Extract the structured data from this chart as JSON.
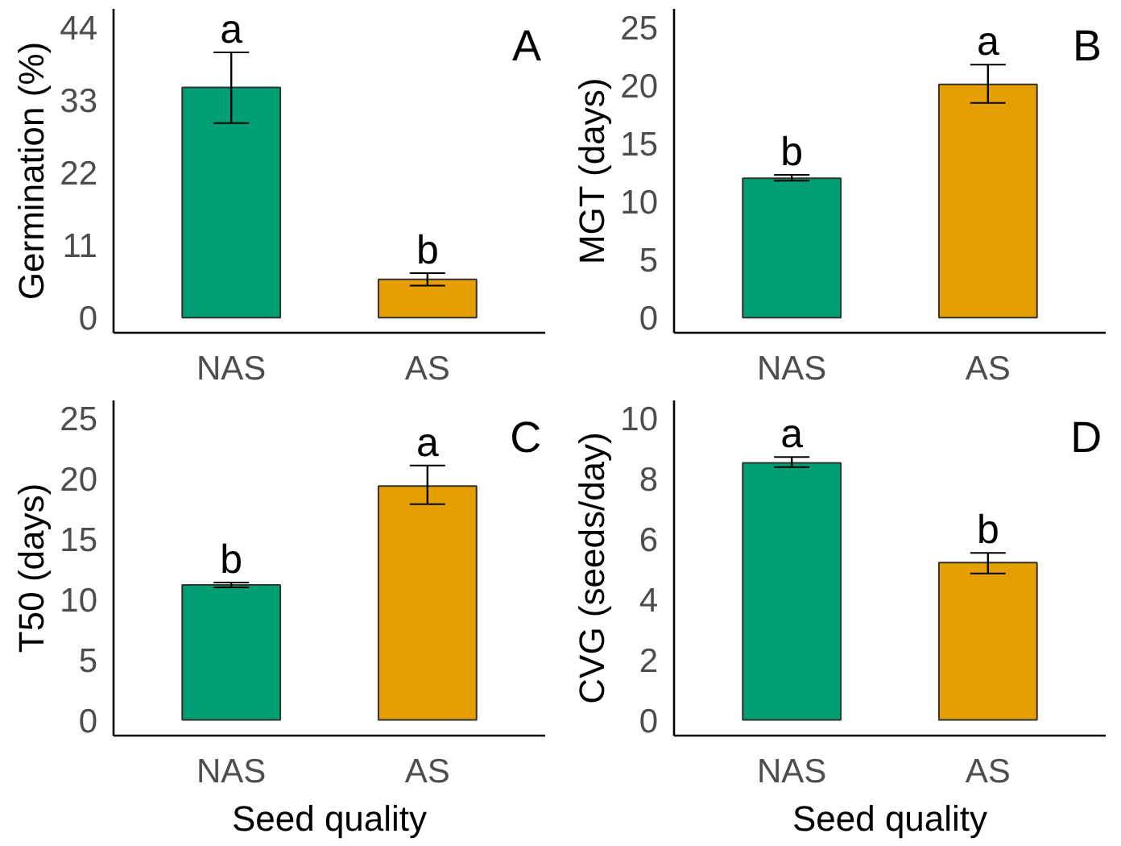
{
  "chart_data": [
    {
      "type": "bar",
      "categories": [
        "NAS",
        "AS"
      ],
      "values": [
        34.9,
        5.8
      ],
      "colors": [
        "#009e73",
        "#e69f00"
      ],
      "errors": [
        [
          29.5,
          40.2
        ],
        [
          4.85,
          6.75
        ]
      ],
      "ylabel": "Germination (%)",
      "ylim": [
        -2.3,
        46.8
      ],
      "yticks": [
        0,
        11,
        22,
        33,
        44
      ],
      "grid": false,
      "annotations": [
        {
          "text": "a",
          "x": "NAS",
          "y": 40.2
        },
        {
          "text": "b",
          "x": "AS",
          "y": 6.75
        },
        "A"
      ]
    },
    {
      "type": "bar",
      "categories": [
        "NAS",
        "AS"
      ],
      "values": [
        12.0,
        20.1
      ],
      "colors": [
        "#009e73",
        "#e69f00"
      ],
      "errors": [
        [
          11.8,
          12.3
        ],
        [
          18.5,
          21.8
        ]
      ],
      "ylabel": "MGT (days)",
      "ylim": [
        -1.3,
        26.6
      ],
      "yticks": [
        0,
        5,
        10,
        15,
        20,
        25
      ],
      "grid": false,
      "annotations": [
        {
          "text": "b",
          "x": "NAS",
          "y": 12.3
        },
        {
          "text": "a",
          "x": "AS",
          "y": 21.8
        },
        "B"
      ]
    },
    {
      "type": "bar",
      "categories": [
        "NAS",
        "AS"
      ],
      "values": [
        11.2,
        19.4
      ],
      "colors": [
        "#009e73",
        "#e69f00"
      ],
      "errors": [
        [
          11.0,
          11.4
        ],
        [
          17.9,
          21.1
        ]
      ],
      "xlabel": "Seed quality",
      "ylabel": "T50 (days)",
      "ylim": [
        -1.3,
        26.5
      ],
      "yticks": [
        0,
        5,
        10,
        15,
        20,
        25
      ],
      "grid": false,
      "annotations": [
        {
          "text": "b",
          "x": "NAS",
          "y": 11.4
        },
        {
          "text": "a",
          "x": "AS",
          "y": 21.1
        },
        "C"
      ]
    },
    {
      "type": "bar",
      "categories": [
        "NAS",
        "AS"
      ],
      "values": [
        8.53,
        5.22
      ],
      "colors": [
        "#009e73",
        "#e69f00"
      ],
      "errors": [
        [
          8.39,
          8.72
        ],
        [
          4.86,
          5.54
        ]
      ],
      "xlabel": "Seed quality",
      "ylabel": "CVG (seeds/day)",
      "ylim": [
        -0.52,
        10.6
      ],
      "yticks": [
        0,
        2,
        4,
        6,
        8,
        10
      ],
      "grid": false,
      "annotations": [
        {
          "text": "a",
          "x": "NAS",
          "y": 8.72
        },
        {
          "text": "b",
          "x": "AS",
          "y": 5.54
        },
        "D"
      ]
    }
  ]
}
